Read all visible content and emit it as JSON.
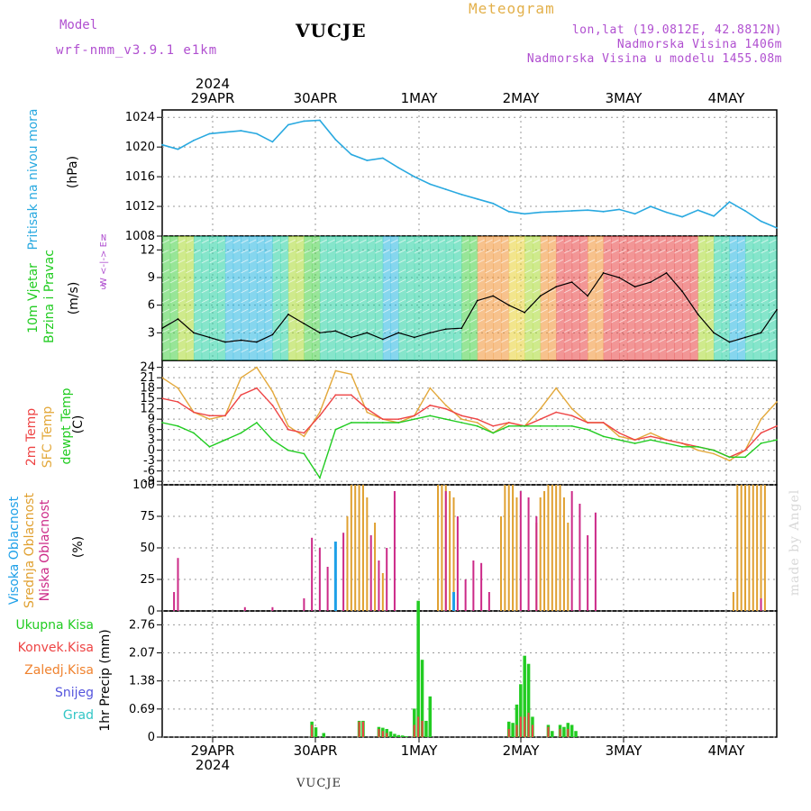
{
  "header": {
    "model_label": "Model",
    "model_name": "wrf-nmm_v3.9.1 e1km",
    "station": "VUCJE",
    "meteogram": "Meteogram",
    "lonlat": "lon,lat (19.0812E, 42.8812N)",
    "altitude": "Nadmorska Visina 1406m",
    "model_altitude": "Nadmorska Visina u modelu 1455.08m"
  },
  "footer": {
    "station": "VUCJE",
    "credit": "made by Angel"
  },
  "colors": {
    "pressure": "#29a9e0",
    "wind_label": "#22cc22",
    "temp2m": "#ee4444",
    "sfc": "#e3a83a",
    "dew": "#22cc22",
    "high": "#1ea0e8",
    "mid": "#e0a030",
    "low": "#cc2a88",
    "total": "#22cc22",
    "conv": "#ee4444",
    "frozen": "#f0822e",
    "snow": "#5555dd",
    "hail": "#33c6c6",
    "purple": "#b04fd0",
    "grid": "#999999"
  },
  "axis": {
    "year": "2024",
    "dates": [
      "29APR",
      "30APR",
      "1MAY",
      "2MAY",
      "3MAY",
      "4MAY"
    ]
  },
  "panels": {
    "pressure": {
      "label": "Pritisak na nivou mora",
      "unit": "(hPa)"
    },
    "wind": {
      "label1": "10m Vjetar",
      "label2": "Brzina i Pravac",
      "unit": "(m/s)",
      "compass": "W <-|-> E",
      "ns_top": "N",
      "ns_bottom": "S"
    },
    "temp": {
      "label1": "2m Temp",
      "label2": "SFC Temp",
      "label3": "dewpt Temp",
      "unit": "(C)"
    },
    "cloud": {
      "label1": "Visoka Oblacnost",
      "label2": "Srednja Oblacnost",
      "label3": "Niska Oblacnost",
      "unit": "(%)"
    },
    "precip": {
      "unit": "1hr Precip (mm)",
      "legend": [
        "Ukupna Kisa",
        "Konvek.Kisa",
        "Zaledj.Kisa",
        "Snijeg",
        "Grad"
      ]
    }
  },
  "chart_data": [
    {
      "type": "line",
      "title": "Pritisak na nivou mora",
      "ylabel": "(hPa)",
      "ylim": [
        1008,
        1025
      ],
      "yticks": [
        1008,
        1012,
        1016,
        1020,
        1024
      ],
      "x_hours": [
        0,
        4,
        8,
        12,
        16,
        20,
        24,
        28,
        32,
        36,
        40,
        44,
        48,
        52,
        56,
        60,
        64,
        68,
        72,
        76,
        80,
        84,
        88,
        92,
        96,
        100,
        104,
        108,
        112,
        116,
        120,
        124,
        128,
        132,
        136,
        140,
        144,
        148,
        152,
        156
      ],
      "series": [
        {
          "values": [
            1020.3,
            1019.7,
            1020.9,
            1021.8,
            1022.0,
            1022.2,
            1021.8,
            1020.7,
            1023.0,
            1023.5,
            1023.6,
            1021.0,
            1019.0,
            1018.2,
            1018.5,
            1017.2,
            1016.0,
            1015.0,
            1014.3,
            1013.6,
            1013.0,
            1012.4,
            1011.3,
            1011.0,
            1011.2,
            1011.3,
            1011.4,
            1011.5,
            1011.3,
            1011.6,
            1011.0,
            1012.0,
            1011.2,
            1010.6,
            1011.5,
            1010.7,
            1012.6,
            1011.4,
            1010.0,
            1009.1
          ]
        }
      ]
    },
    {
      "type": "line",
      "title": "10m Vjetar Brzina i Pravac",
      "ylabel": "(m/s)",
      "ylim": [
        0,
        13.5
      ],
      "yticks": [
        3,
        6,
        9,
        12
      ],
      "x_hours": [
        0,
        4,
        8,
        12,
        16,
        20,
        24,
        28,
        32,
        36,
        40,
        44,
        48,
        52,
        56,
        60,
        64,
        68,
        72,
        76,
        80,
        84,
        88,
        92,
        96,
        100,
        104,
        108,
        112,
        116,
        120,
        124,
        128,
        132,
        136,
        140,
        144,
        148,
        152,
        156
      ],
      "series": [
        {
          "values": [
            3.5,
            4.5,
            3.0,
            2.5,
            2.0,
            2.2,
            2.0,
            2.8,
            5.0,
            4.0,
            3.0,
            3.2,
            2.5,
            3.0,
            2.3,
            3.0,
            2.5,
            3.0,
            3.4,
            3.5,
            6.5,
            7.0,
            6.0,
            5.2,
            7.0,
            8.0,
            8.5,
            7.0,
            9.5,
            9.0,
            8.0,
            8.5,
            9.5,
            7.5,
            5.0,
            3.0,
            2.0,
            2.5,
            3.0,
            5.5
          ]
        }
      ]
    },
    {
      "type": "line",
      "title": "2m Temp / SFC Temp / dewpt Temp",
      "ylabel": "(C)",
      "ylim": [
        -10,
        26
      ],
      "yticks": [
        -9,
        -6,
        -3,
        0,
        3,
        6,
        9,
        12,
        15,
        18,
        21,
        24
      ],
      "x_hours": [
        0,
        4,
        8,
        12,
        16,
        20,
        24,
        28,
        32,
        36,
        40,
        44,
        48,
        52,
        56,
        60,
        64,
        68,
        72,
        76,
        80,
        84,
        88,
        92,
        96,
        100,
        104,
        108,
        112,
        116,
        120,
        124,
        128,
        132,
        136,
        140,
        144,
        148,
        152,
        156
      ],
      "series": [
        {
          "name": "2m Temp",
          "values": [
            15,
            14,
            11,
            10,
            10,
            16,
            18,
            13,
            6,
            5,
            10,
            16,
            16,
            12,
            9,
            9,
            10,
            13,
            12,
            10,
            9,
            7,
            8,
            7,
            9,
            11,
            10,
            8,
            8,
            5,
            3,
            4,
            3,
            2,
            1,
            0,
            -2,
            0,
            5,
            7
          ]
        },
        {
          "name": "SFC Temp",
          "values": [
            21,
            18,
            11,
            9,
            10,
            21,
            24,
            17,
            7,
            4,
            11,
            23,
            22,
            11,
            9,
            8,
            10,
            18,
            13,
            9,
            8,
            5,
            8,
            7,
            12,
            18,
            12,
            8,
            8,
            4,
            3,
            5,
            3,
            2,
            0,
            -1,
            -3,
            0,
            9,
            14
          ]
        },
        {
          "name": "dewpt Temp",
          "values": [
            8,
            7,
            5,
            1,
            3,
            5,
            8,
            3,
            0,
            -1,
            -8,
            6,
            8,
            8,
            8,
            8,
            9,
            10,
            9,
            8,
            7,
            5,
            7,
            7,
            7,
            7,
            7,
            6,
            4,
            3,
            2,
            3,
            2,
            1,
            1,
            0,
            -2,
            -2,
            2,
            3
          ]
        }
      ]
    },
    {
      "type": "bar",
      "title": "Visoka / Srednja / Niska Oblacnost",
      "ylabel": "(%)",
      "ylim": [
        0,
        100
      ],
      "yticks": [
        0,
        25,
        50,
        75,
        100
      ],
      "series": [
        {
          "name": "Visoka Oblacnost",
          "x_hours": [
            44,
            74
          ],
          "values": [
            55,
            15
          ]
        },
        {
          "name": "Srednja Oblacnost",
          "x_hours": [
            47,
            48,
            49,
            50,
            51,
            52,
            54,
            56,
            70,
            71,
            72,
            73,
            74,
            86,
            87,
            88,
            89,
            90,
            95,
            96,
            97,
            98,
            99,
            100,
            101,
            102,
            103,
            145,
            146,
            147,
            148,
            149,
            150,
            151,
            152,
            153
          ],
          "values": [
            75,
            100,
            100,
            100,
            100,
            90,
            70,
            30,
            100,
            100,
            100,
            95,
            90,
            75,
            100,
            100,
            100,
            90,
            70,
            90,
            95,
            100,
            100,
            100,
            100,
            90,
            70,
            15,
            100,
            100,
            100,
            100,
            100,
            100,
            100,
            100
          ]
        },
        {
          "name": "Niska Oblacnost",
          "x_hours": [
            3,
            4,
            21,
            28,
            36,
            38,
            40,
            42,
            46,
            53,
            55,
            57,
            59,
            72,
            75,
            77,
            79,
            81,
            83,
            91,
            93,
            95,
            104,
            106,
            108,
            110,
            152
          ],
          "values": [
            15,
            42,
            3,
            3,
            10,
            58,
            50,
            35,
            62,
            60,
            40,
            50,
            95,
            95,
            75,
            25,
            40,
            38,
            15,
            95,
            90,
            75,
            95,
            85,
            60,
            78,
            10
          ]
        }
      ]
    },
    {
      "type": "bar",
      "title": "1hr Precip",
      "ylabel": "1hr Precip (mm)",
      "ylim": [
        0,
        3.1
      ],
      "yticks": [
        0,
        0.69,
        1.38,
        2.07,
        2.76
      ],
      "series": [
        {
          "name": "Ukupna Kisa",
          "x_hours": [
            38,
            39,
            41,
            50,
            51,
            55,
            56,
            57,
            58,
            59,
            60,
            61,
            62,
            64,
            65,
            66,
            67,
            68,
            88,
            89,
            90,
            91,
            92,
            93,
            94,
            98,
            99,
            101,
            102,
            103,
            104,
            105
          ],
          "values": [
            0.38,
            0.24,
            0.1,
            0.4,
            0.4,
            0.25,
            0.23,
            0.2,
            0.14,
            0.08,
            0.05,
            0.04,
            0.02,
            0.7,
            3.35,
            1.9,
            0.4,
            1.0,
            0.38,
            0.35,
            0.8,
            1.3,
            2.0,
            1.8,
            0.5,
            0.3,
            0.15,
            0.3,
            0.25,
            0.35,
            0.3,
            0.15
          ]
        },
        {
          "name": "Konvek.Kisa",
          "x_hours": [
            38,
            50,
            51,
            55,
            56,
            57,
            64,
            65,
            66,
            88,
            90,
            91,
            92,
            93,
            94,
            98,
            101,
            103
          ],
          "values": [
            0.3,
            0.38,
            0.38,
            0.2,
            0.15,
            0.1,
            0.3,
            0.5,
            0.4,
            0.2,
            0.3,
            0.5,
            0.5,
            0.6,
            0.3,
            0.25,
            0.2,
            0.2
          ]
        }
      ]
    }
  ]
}
